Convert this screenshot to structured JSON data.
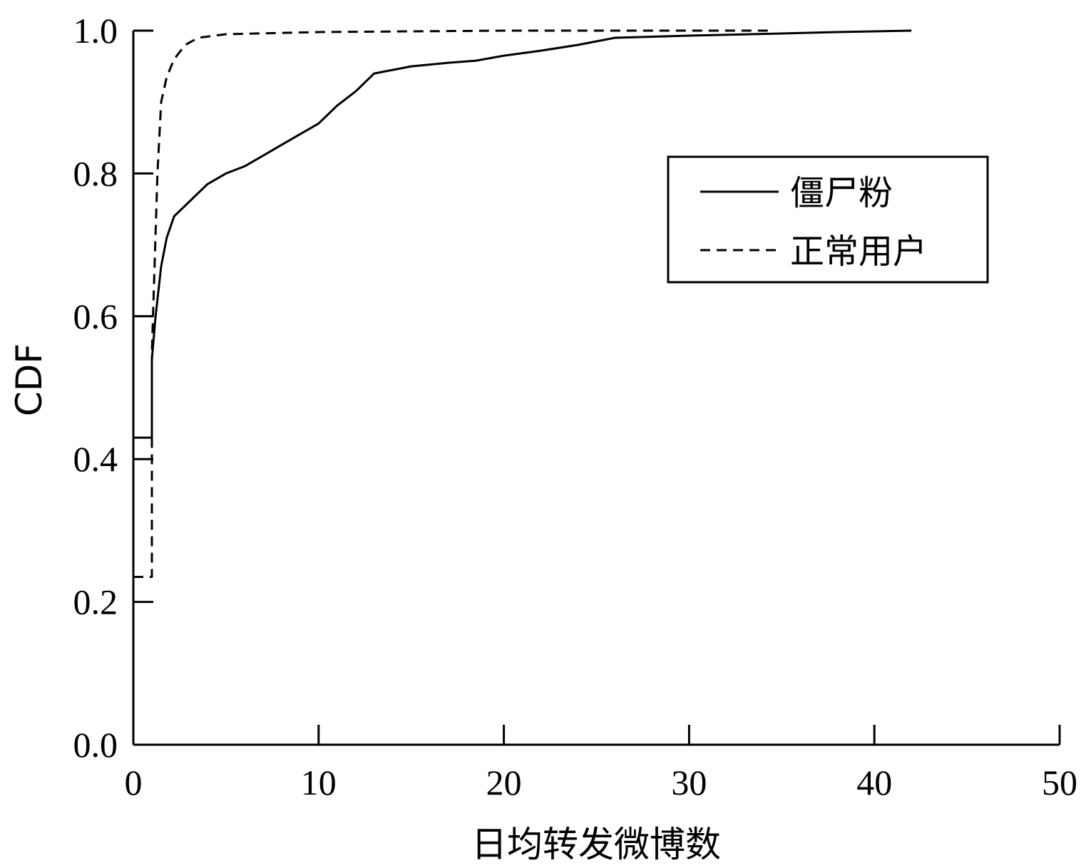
{
  "chart_data": {
    "type": "line",
    "title": "",
    "xlabel": "日均转发微博数",
    "ylabel": "CDF",
    "xlim": [
      0,
      50
    ],
    "ylim": [
      0,
      1.0
    ],
    "xticks": [
      "0",
      "10",
      "20",
      "30",
      "40",
      "50"
    ],
    "yticks": [
      "0.0",
      "0.2",
      "0.4",
      "0.6",
      "0.8",
      "1.0"
    ],
    "grid": false,
    "legend_position": "upper-right",
    "series": [
      {
        "name": "僵尸粉",
        "style": "solid",
        "color": "#000000",
        "points": [
          [
            0,
            0.43
          ],
          [
            1.0,
            0.43
          ],
          [
            1.0,
            0.54
          ],
          [
            1.2,
            0.6
          ],
          [
            1.5,
            0.67
          ],
          [
            1.8,
            0.71
          ],
          [
            2.2,
            0.74
          ],
          [
            3.0,
            0.76
          ],
          [
            4.0,
            0.785
          ],
          [
            5.0,
            0.8
          ],
          [
            6.0,
            0.81
          ],
          [
            7.0,
            0.825
          ],
          [
            8.0,
            0.84
          ],
          [
            9.0,
            0.855
          ],
          [
            10.0,
            0.87
          ],
          [
            11.0,
            0.895
          ],
          [
            12.0,
            0.915
          ],
          [
            13.0,
            0.94
          ],
          [
            14.0,
            0.945
          ],
          [
            15.0,
            0.95
          ],
          [
            17.0,
            0.955
          ],
          [
            18.5,
            0.958
          ],
          [
            20.0,
            0.965
          ],
          [
            22.0,
            0.972
          ],
          [
            24.0,
            0.98
          ],
          [
            26.0,
            0.99
          ],
          [
            30.0,
            0.993
          ],
          [
            35.0,
            0.996
          ],
          [
            38.0,
            0.998
          ],
          [
            42.0,
            1.0
          ]
        ]
      },
      {
        "name": "正常用户",
        "style": "dashed",
        "color": "#000000",
        "points": [
          [
            0,
            0.235
          ],
          [
            1.0,
            0.235
          ],
          [
            1.0,
            0.55
          ],
          [
            1.3,
            0.8
          ],
          [
            1.5,
            0.9
          ],
          [
            1.8,
            0.935
          ],
          [
            2.2,
            0.96
          ],
          [
            2.8,
            0.98
          ],
          [
            3.5,
            0.99
          ],
          [
            5.0,
            0.995
          ],
          [
            10.0,
            0.998
          ],
          [
            20.0,
            1.0
          ],
          [
            34.5,
            1.0
          ]
        ]
      }
    ]
  }
}
